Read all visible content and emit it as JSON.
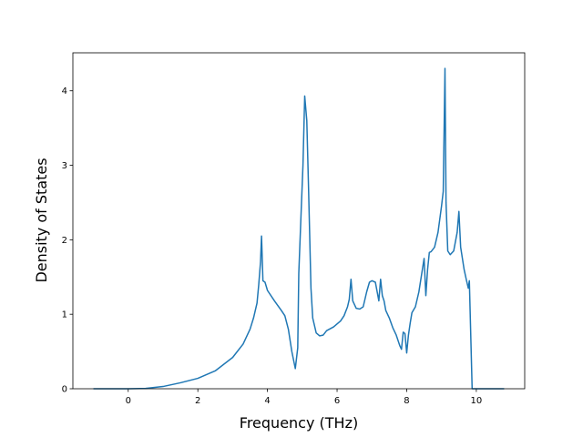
{
  "chart_data": {
    "type": "line",
    "xlabel": "Frequency (THz)",
    "ylabel": "Density of States",
    "x": [
      -1.0,
      0,
      0.5,
      1.0,
      1.5,
      2.0,
      2.5,
      3.0,
      3.3,
      3.5,
      3.6,
      3.7,
      3.75,
      3.8,
      3.83,
      3.87,
      3.93,
      4.0,
      4.2,
      4.4,
      4.5,
      4.6,
      4.7,
      4.8,
      4.87,
      4.9,
      4.97,
      5.02,
      5.07,
      5.13,
      5.18,
      5.25,
      5.3,
      5.4,
      5.5,
      5.6,
      5.7,
      5.9,
      6.1,
      6.2,
      6.3,
      6.35,
      6.4,
      6.45,
      6.55,
      6.65,
      6.75,
      6.85,
      6.93,
      7.0,
      7.1,
      7.2,
      7.25,
      7.3,
      7.35,
      7.4,
      7.5,
      7.6,
      7.7,
      7.8,
      7.85,
      7.9,
      7.95,
      8.0,
      8.05,
      8.1,
      8.15,
      8.25,
      8.35,
      8.45,
      8.5,
      8.55,
      8.6,
      8.65,
      8.7,
      8.8,
      8.9,
      9.0,
      9.05,
      9.1,
      9.13,
      9.18,
      9.25,
      9.35,
      9.45,
      9.5,
      9.55,
      9.6,
      9.65,
      9.72,
      9.77,
      9.8,
      9.88,
      10.0,
      10.8
    ],
    "series": [
      {
        "name": "DOS",
        "color": "#1f77b4",
        "values": [
          0,
          0,
          0.005,
          0.03,
          0.08,
          0.14,
          0.24,
          0.42,
          0.6,
          0.8,
          0.95,
          1.15,
          1.4,
          1.7,
          2.05,
          1.45,
          1.43,
          1.32,
          1.18,
          1.05,
          0.98,
          0.8,
          0.5,
          0.27,
          0.55,
          1.55,
          2.4,
          3.0,
          3.93,
          3.6,
          2.7,
          1.35,
          0.95,
          0.75,
          0.71,
          0.72,
          0.78,
          0.83,
          0.91,
          0.98,
          1.1,
          1.2,
          1.47,
          1.18,
          1.08,
          1.07,
          1.1,
          1.3,
          1.43,
          1.45,
          1.43,
          1.18,
          1.47,
          1.25,
          1.18,
          1.05,
          0.95,
          0.82,
          0.72,
          0.58,
          0.53,
          0.76,
          0.74,
          0.48,
          0.72,
          0.88,
          1.02,
          1.1,
          1.3,
          1.6,
          1.75,
          1.25,
          1.6,
          1.83,
          1.84,
          1.9,
          2.1,
          2.45,
          2.65,
          4.3,
          2.5,
          1.85,
          1.8,
          1.85,
          2.1,
          2.38,
          1.9,
          1.75,
          1.6,
          1.45,
          1.35,
          1.45,
          0,
          0,
          0
        ]
      }
    ],
    "xlim": [
      -1.59,
      11.39
    ],
    "xticks": [
      0,
      2,
      4,
      6,
      8,
      10
    ],
    "ylim": [
      0,
      4.51
    ],
    "yticks": [
      0,
      1,
      2,
      3,
      4
    ]
  }
}
